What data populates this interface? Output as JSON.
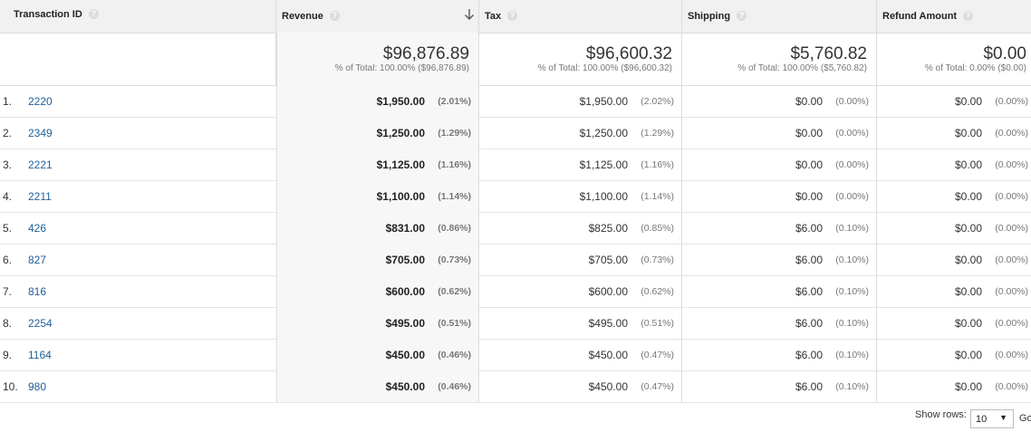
{
  "header": {
    "columns": [
      {
        "label": "Transaction ID"
      },
      {
        "label": "Revenue"
      },
      {
        "label": "Tax"
      },
      {
        "label": "Shipping"
      },
      {
        "label": "Refund Amount"
      }
    ],
    "help_glyph": "?",
    "sorted_column": "Revenue",
    "sort_direction": "descending"
  },
  "totals": [
    {
      "value": "$96,876.89",
      "sub": "% of Total: 100.00% ($96,876.89)"
    },
    {
      "value": "$96,600.32",
      "sub": "% of Total: 100.00% ($96,600.32)"
    },
    {
      "value": "$5,760.82",
      "sub": "% of Total: 100.00% ($5,760.82)"
    },
    {
      "value": "$0.00",
      "sub": "% of Total: 0.00% ($0.00)"
    }
  ],
  "rows": [
    {
      "idx": "1.",
      "id": "2220",
      "revenue": "$1,950.00",
      "revenue_pct": "(2.01%)",
      "tax": "$1,950.00",
      "tax_pct": "(2.02%)",
      "shipping": "$0.00",
      "shipping_pct": "(0.00%)",
      "refund": "$0.00",
      "refund_pct": "(0.00%)"
    },
    {
      "idx": "2.",
      "id": "2349",
      "revenue": "$1,250.00",
      "revenue_pct": "(1.29%)",
      "tax": "$1,250.00",
      "tax_pct": "(1.29%)",
      "shipping": "$0.00",
      "shipping_pct": "(0.00%)",
      "refund": "$0.00",
      "refund_pct": "(0.00%)"
    },
    {
      "idx": "3.",
      "id": "2221",
      "revenue": "$1,125.00",
      "revenue_pct": "(1.16%)",
      "tax": "$1,125.00",
      "tax_pct": "(1.16%)",
      "shipping": "$0.00",
      "shipping_pct": "(0.00%)",
      "refund": "$0.00",
      "refund_pct": "(0.00%)"
    },
    {
      "idx": "4.",
      "id": "2211",
      "revenue": "$1,100.00",
      "revenue_pct": "(1.14%)",
      "tax": "$1,100.00",
      "tax_pct": "(1.14%)",
      "shipping": "$0.00",
      "shipping_pct": "(0.00%)",
      "refund": "$0.00",
      "refund_pct": "(0.00%)"
    },
    {
      "idx": "5.",
      "id": "426",
      "revenue": "$831.00",
      "revenue_pct": "(0.86%)",
      "tax": "$825.00",
      "tax_pct": "(0.85%)",
      "shipping": "$6.00",
      "shipping_pct": "(0.10%)",
      "refund": "$0.00",
      "refund_pct": "(0.00%)"
    },
    {
      "idx": "6.",
      "id": "827",
      "revenue": "$705.00",
      "revenue_pct": "(0.73%)",
      "tax": "$705.00",
      "tax_pct": "(0.73%)",
      "shipping": "$6.00",
      "shipping_pct": "(0.10%)",
      "refund": "$0.00",
      "refund_pct": "(0.00%)"
    },
    {
      "idx": "7.",
      "id": "816",
      "revenue": "$600.00",
      "revenue_pct": "(0.62%)",
      "tax": "$600.00",
      "tax_pct": "(0.62%)",
      "shipping": "$6.00",
      "shipping_pct": "(0.10%)",
      "refund": "$0.00",
      "refund_pct": "(0.00%)"
    },
    {
      "idx": "8.",
      "id": "2254",
      "revenue": "$495.00",
      "revenue_pct": "(0.51%)",
      "tax": "$495.00",
      "tax_pct": "(0.51%)",
      "shipping": "$6.00",
      "shipping_pct": "(0.10%)",
      "refund": "$0.00",
      "refund_pct": "(0.00%)"
    },
    {
      "idx": "9.",
      "id": "1164",
      "revenue": "$450.00",
      "revenue_pct": "(0.46%)",
      "tax": "$450.00",
      "tax_pct": "(0.47%)",
      "shipping": "$6.00",
      "shipping_pct": "(0.10%)",
      "refund": "$0.00",
      "refund_pct": "(0.00%)"
    },
    {
      "idx": "10.",
      "id": "980",
      "revenue": "$450.00",
      "revenue_pct": "(0.46%)",
      "tax": "$450.00",
      "tax_pct": "(0.47%)",
      "shipping": "$6.00",
      "shipping_pct": "(0.10%)",
      "refund": "$0.00",
      "refund_pct": "(0.00%)"
    }
  ],
  "footer": {
    "show_rows_label": "Show rows:",
    "show_rows_value": "10",
    "go_label": "Go"
  },
  "colors": {
    "link": "#1f5e99",
    "header_bg": "#f1f1f1",
    "sorted_column_bg": "#f7f7f7"
  }
}
